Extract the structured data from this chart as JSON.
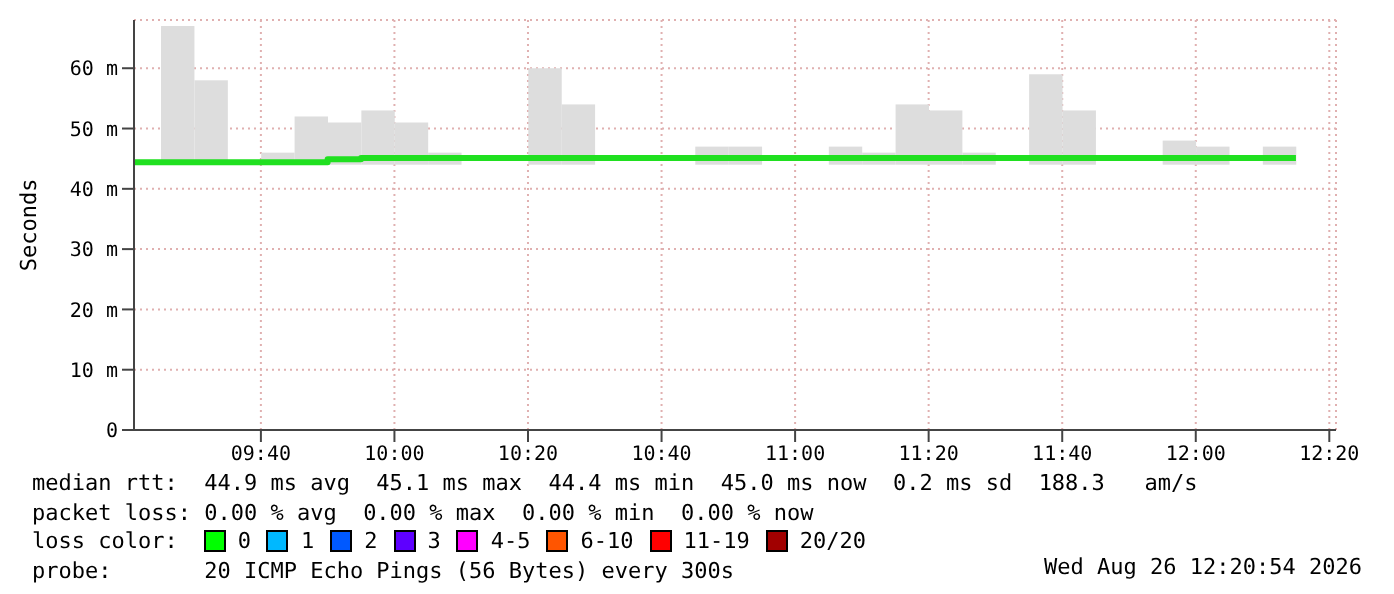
{
  "chart_data": {
    "type": "bar",
    "ylabel": "Seconds",
    "x": [
      9.4583,
      9.5417,
      9.625,
      9.7083,
      9.7917,
      9.875,
      9.9583,
      10.0417,
      10.125,
      10.2083,
      10.2917,
      10.375,
      10.4583,
      10.5417,
      10.625,
      10.7083,
      10.7917,
      10.875,
      10.9583,
      11.0417,
      11.125,
      11.2083,
      11.2917,
      11.375,
      11.4583,
      11.5417,
      11.625,
      11.7083,
      11.7917,
      11.875,
      11.9583,
      12.0417,
      12.125,
      12.2083
    ],
    "series": [
      {
        "color": "#dddddd",
        "base": [
          44,
          44,
          null,
          44,
          44,
          44,
          44,
          44,
          44,
          null,
          null,
          44,
          44,
          null,
          null,
          null,
          44,
          44,
          null,
          null,
          44,
          44,
          44,
          44,
          44,
          null,
          44,
          44,
          null,
          null,
          44,
          44,
          null,
          44
        ],
        "values": [
          23,
          14,
          null,
          2,
          8,
          7,
          9,
          7,
          2,
          null,
          null,
          16,
          10,
          null,
          null,
          null,
          3,
          3,
          null,
          null,
          3,
          2,
          10,
          9,
          2,
          null,
          15,
          9,
          null,
          null,
          4,
          3,
          null,
          3
        ]
      },
      {
        "type": "step",
        "color": "#20e020",
        "x": [
          9.35,
          9.8333,
          9.9167,
          12.25
        ],
        "values": [
          44.4,
          44.9,
          45.1,
          45.1
        ]
      }
    ],
    "xlim": [
      9.35,
      12.35
    ],
    "xticks": [
      {
        "value": 9.6667,
        "label": "09:40"
      },
      {
        "value": 10,
        "label": "10:00"
      },
      {
        "value": 10.3333,
        "label": "10:20"
      },
      {
        "value": 10.6667,
        "label": "10:40"
      },
      {
        "value": 11,
        "label": "11:00"
      },
      {
        "value": 11.3333,
        "label": "11:20"
      },
      {
        "value": 11.6667,
        "label": "11:40"
      },
      {
        "value": 12,
        "label": "12:00"
      },
      {
        "value": 12.3333,
        "label": "12:20"
      }
    ],
    "ylim": [
      0,
      68
    ],
    "yticks": [
      0,
      {
        "value": 10,
        "label": "10 m"
      },
      {
        "value": 20,
        "label": "20 m"
      },
      {
        "value": 30,
        "label": "30 m"
      },
      {
        "value": 40,
        "label": "40 m"
      },
      {
        "value": 50,
        "label": "50 m"
      },
      {
        "value": 60,
        "label": "60 m"
      }
    ],
    "grid": true,
    "annotations": [
      "median rtt:  44.9 ms avg  45.1 ms max  44.4 ms min  45.0 ms now  0.2 ms sd  188.3   am/s",
      "packet loss: 0.00 % avg  0.00 % max  0.00 % min  0.00 % now",
      "loss color:  0  1  2  3  4-5  6-10  11-19  20/20",
      "probe:       20 ICMP Echo Pings (56 Bytes) every 300s",
      "Wed Aug 26 12:20:54 2026"
    ]
  }
}
